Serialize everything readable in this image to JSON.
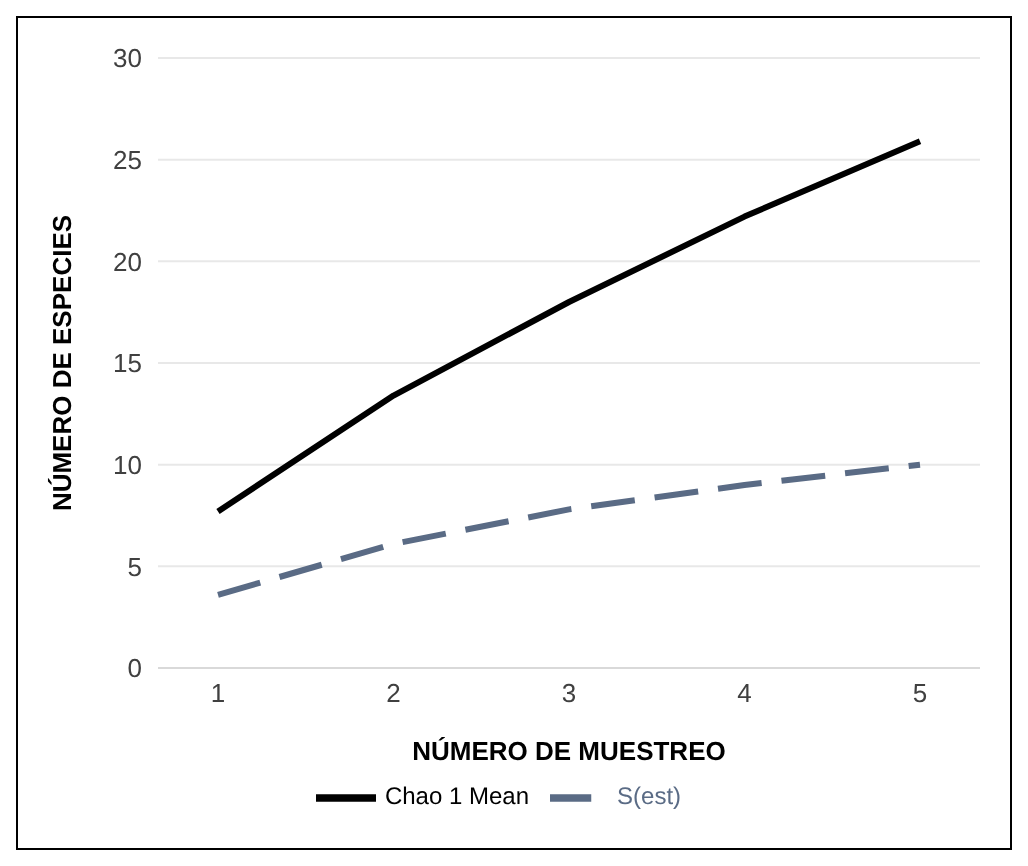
{
  "chart_data": {
    "type": "line",
    "xlabel": "NÚMERO DE MUESTREO",
    "ylabel": "NÚMERO DE ESPECIES",
    "categories": [
      "1",
      "2",
      "3",
      "4",
      "5"
    ],
    "series": [
      {
        "name": "S(est)",
        "color": "#5a6b85",
        "values": [
          3.6,
          6.1,
          7.8,
          9.0,
          10.0
        ],
        "line_style": "dashed"
      },
      {
        "name": "Chao 1 Mean",
        "color": "#000000",
        "values": [
          7.7,
          13.4,
          18.0,
          22.2,
          25.9
        ],
        "line_style": "solid"
      }
    ],
    "ylim": [
      0,
      30
    ],
    "yticks": [
      0,
      5,
      10,
      15,
      20,
      25,
      30
    ],
    "grid": "y",
    "legend": "bottom",
    "marker": "none"
  }
}
